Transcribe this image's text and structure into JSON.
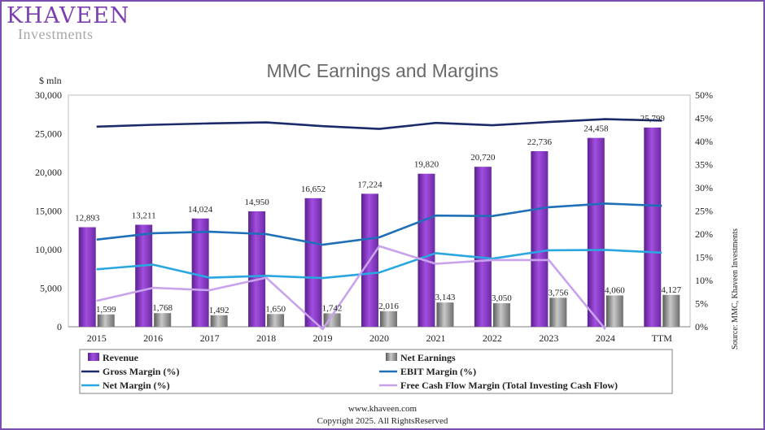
{
  "brand": {
    "name": "KHAVEEN",
    "sub": "Investments"
  },
  "footer": {
    "url": "www.khaveen.com",
    "copyright": "Copyright 2025. All RightsReserved"
  },
  "source_note": "Source: MMC, Khaveen Investments",
  "colors": {
    "revenue": "#8a3fcc",
    "net_earnings": "#8c8c8c",
    "gross_margin": "#1b2a6b",
    "ebit_margin": "#1f6fb8",
    "net_margin": "#2aa7e0",
    "fcf_margin": "#c9a2ee"
  },
  "chart_data": {
    "type": "bar",
    "title": "MMC Earnings and Margins",
    "ylabel": "$ mln",
    "categories": [
      "2015",
      "2016",
      "2017",
      "2018",
      "2019",
      "2020",
      "2021",
      "2022",
      "2023",
      "2024",
      "TTM"
    ],
    "ylim": [
      0,
      30000
    ],
    "y_ticks": [
      "0",
      "5,000",
      "10,000",
      "15,000",
      "20,000",
      "25,000",
      "30,000"
    ],
    "y2lim": [
      0,
      50
    ],
    "y2_ticks": [
      "0%",
      "5%",
      "10%",
      "15%",
      "20%",
      "25%",
      "30%",
      "35%",
      "40%",
      "45%",
      "50%"
    ],
    "bars": [
      {
        "name": "Revenue",
        "values": [
          12893,
          13211,
          14024,
          14950,
          16652,
          17224,
          19820,
          20720,
          22736,
          24458,
          25799
        ],
        "labels": [
          "12,893",
          "13,211",
          "14,024",
          "14,950",
          "16,652",
          "17,224",
          "19,820",
          "20,720",
          "22,736",
          "24,458",
          "25,799"
        ]
      },
      {
        "name": "Net Earnings",
        "values": [
          1599,
          1768,
          1492,
          1650,
          1742,
          2016,
          3143,
          3050,
          3756,
          4060,
          4127
        ],
        "labels": [
          "1,599",
          "1,768",
          "1,492",
          "1,650",
          "1,742",
          "2,016",
          "3,143",
          "3,050",
          "3,756",
          "4,060",
          "4,127"
        ]
      }
    ],
    "lines": [
      {
        "name": "Gross Margin (%)",
        "values": [
          43.2,
          43.6,
          43.9,
          44.1,
          43.3,
          42.7,
          44.0,
          43.5,
          44.2,
          44.8,
          44.5
        ]
      },
      {
        "name": "EBIT Margin (%)",
        "values": [
          18.8,
          20.2,
          20.5,
          20.0,
          17.7,
          19.3,
          24.0,
          23.9,
          25.8,
          26.6,
          26.1
        ]
      },
      {
        "name": "Net Margin (%)",
        "values": [
          12.4,
          13.4,
          10.6,
          11.0,
          10.5,
          11.7,
          15.9,
          14.7,
          16.5,
          16.6,
          16.0
        ]
      },
      {
        "name": "Free Cash Flow Margin (Total Investing Cash Flow)",
        "values": [
          5.6,
          8.4,
          7.9,
          10.6,
          -8.0,
          17.4,
          13.6,
          14.4,
          14.4,
          -8.0,
          null
        ]
      }
    ],
    "legend": {
      "position": "bottom",
      "items": [
        "Revenue",
        "Net Earnings",
        "Gross Margin (%)",
        "EBIT Margin (%)",
        "Net Margin (%)",
        "Free Cash Flow Margin (Total Investing Cash Flow)"
      ]
    },
    "grid": false
  }
}
